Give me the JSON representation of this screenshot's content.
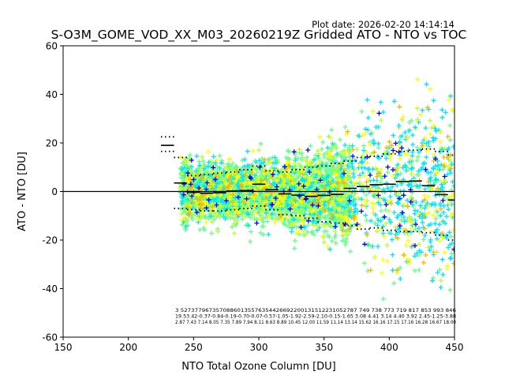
{
  "chart_data": {
    "type": "scatter",
    "plot_date": "Plot date: 2026-02-20 14:14:14",
    "title": "S-O3M_GOME_VOD_XX_M03_20260219Z Gridded ATO - NTO vs TOC",
    "xlabel": "NTO Total Ozone Column [DU]",
    "ylabel": "ATO - NTO [DU]",
    "xlim": [
      150,
      450
    ],
    "ylim": [
      -60,
      60
    ],
    "x_ticks": [
      "150",
      "200",
      "250",
      "300",
      "350",
      "400",
      "450"
    ],
    "y_ticks": [
      "60",
      "40",
      "20",
      "0",
      "-20",
      "-40",
      "-60"
    ],
    "reference_line_y": 0,
    "color_scale": [
      "#0000ff",
      "#00e5ff",
      "#66ff88",
      "#b8ff33",
      "#ffff00",
      "#ffb300"
    ],
    "bin_centers": [
      230,
      240,
      250,
      260,
      270,
      280,
      290,
      300,
      310,
      320,
      330,
      340,
      350,
      360,
      370,
      380,
      390,
      400,
      410,
      420,
      430,
      440,
      450
    ],
    "bin_mean": [
      19.0,
      3.5,
      -0.3,
      -0.7,
      -0.5,
      0.2,
      0.4,
      3.0,
      0.7,
      -1.0,
      -1.5,
      -2.0,
      -1.6,
      -1.2,
      1.3,
      2.0,
      2.8,
      3.0,
      4.1,
      4.3,
      2.4,
      -1.3,
      -3.5
    ],
    "bin_upper": [
      22.5,
      14.0,
      6.5,
      7.0,
      7.5,
      8.0,
      9.0,
      10.5,
      8.5,
      8.0,
      9.0,
      10.0,
      10.5,
      11.5,
      12.5,
      14.0,
      14.5,
      15.5,
      16.5,
      17.0,
      17.5,
      16.5,
      15.0
    ],
    "bin_lower": [
      16.5,
      -7.0,
      -7.5,
      -8.0,
      -8.0,
      -7.5,
      -7.0,
      -6.0,
      -7.5,
      -9.5,
      -10.0,
      -11.0,
      -12.5,
      -13.0,
      -14.0,
      -15.5,
      -15.0,
      -16.0,
      -16.5,
      -16.5,
      -17.0,
      -18.0,
      -20.0
    ],
    "bin_stats_text": [
      "3      52737796735708860135576354426692200131512231052787  749  738  773  719  817  853  993  846",
      "19.53.42-0.37-0.84-0.19-0.70-0.07-0.57-1.05-1.92-2.59-2.10-0.15-1.65  3.08 4.41  3.14 4.40  3.92 2.45-1.25-3.88",
      "2.87 7.43 7.14 8.05 7.35 7.89 7.94 8.11 8.63 8.89 10.45 12.00 11.59 11.14 13.14 15.62 16.16 17.15 17.16 16.28 16.67 18.00"
    ]
  }
}
